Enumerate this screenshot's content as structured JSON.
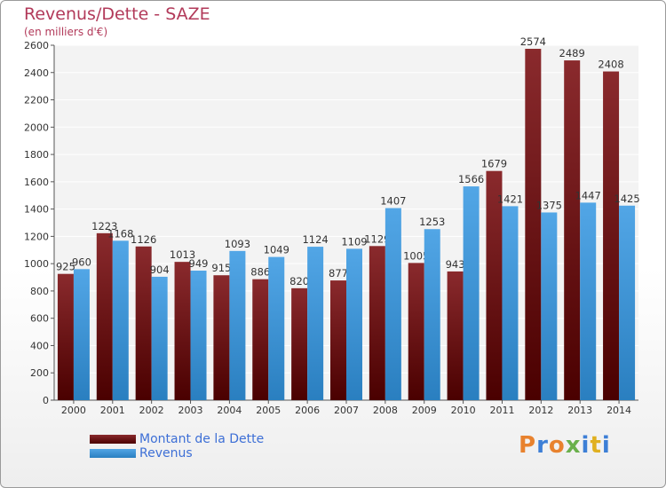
{
  "chart_data": {
    "type": "bar",
    "title": "Revenus/Dette - SAZE",
    "subtitle": "(en milliers d'€)",
    "categories": [
      "2000",
      "2001",
      "2002",
      "2003",
      "2004",
      "2005",
      "2006",
      "2007",
      "2008",
      "2009",
      "2010",
      "2011",
      "2012",
      "2013",
      "2014"
    ],
    "series": [
      {
        "name": "Montant de la Dette",
        "color": "#7a1f22",
        "values": [
          925,
          1223,
          1126,
          1013,
          915,
          886,
          820,
          877,
          1129,
          1005,
          943,
          1679,
          2574,
          2489,
          2408
        ]
      },
      {
        "name": "Revenus",
        "color": "#3f98dd",
        "values": [
          960,
          1168,
          904,
          949,
          1093,
          1049,
          1124,
          1109,
          1407,
          1253,
          1566,
          1421,
          1375,
          1447,
          1425
        ]
      }
    ],
    "ylim": [
      0,
      2600
    ],
    "yticks": [
      0,
      200,
      400,
      600,
      800,
      1000,
      1200,
      1400,
      1600,
      1800,
      2000,
      2200,
      2400,
      2600
    ],
    "grid": true,
    "legend_position": "bottom-left"
  },
  "logo": {
    "text": "Proxiti",
    "colors": [
      "#e8822e",
      "#3d7fd6",
      "#e8822e",
      "#6ab04c",
      "#3d7fd6",
      "#e0b020",
      "#3d7fd6"
    ]
  }
}
